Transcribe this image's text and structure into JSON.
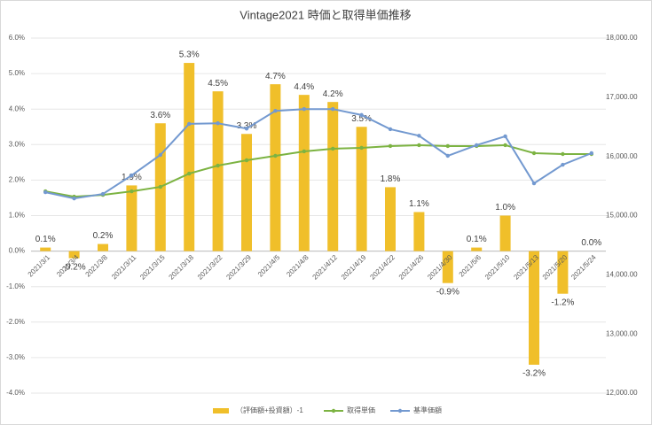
{
  "chart_data": {
    "type": "bar",
    "title": "Vintage2021 時価と取得単価推移",
    "categories": [
      "2021/3/1",
      "2021/3/4",
      "2021/3/8",
      "2021/3/11",
      "2021/3/15",
      "2021/3/18",
      "2021/3/22",
      "2021/3/29",
      "2021/4/5",
      "2021/4/8",
      "2021/4/12",
      "2021/4/19",
      "2021/4/22",
      "2021/4/26",
      "2021/4/30",
      "2021/5/6",
      "2021/5/10",
      "2021/5/13",
      "2021/5/20",
      "2021/5/24"
    ],
    "series": [
      {
        "name": "（評価額+投資額）-1",
        "type": "bar",
        "color": "#f0bf2a",
        "values": [
          0.1,
          -0.2,
          0.2,
          1.85,
          3.6,
          5.3,
          4.5,
          3.3,
          4.7,
          4.4,
          4.2,
          3.5,
          1.8,
          1.1,
          -0.9,
          0.1,
          1.0,
          -3.2,
          -1.2,
          0.0
        ],
        "value_labels": [
          "0.1%",
          "-0.2%",
          "0.2%",
          "1.9%",
          "3.6%",
          "5.3%",
          "4.5%",
          "3.3%",
          "4.7%",
          "4.4%",
          "4.2%",
          "3.5%",
          "1.8%",
          "1.1%",
          "-0.9%",
          "0.1%",
          "1.0%",
          "-3.2%",
          "-1.2%",
          "0.0%"
        ]
      },
      {
        "name": "取得単価",
        "type": "line",
        "axis": "y2",
        "color": "#7cb342",
        "values": [
          15410,
          15320,
          15350,
          15410,
          15485,
          15710,
          15845,
          15935,
          16010,
          16085,
          16130,
          16145,
          16175,
          16190,
          16175,
          16175,
          16190,
          16055,
          16040,
          16040
        ]
      },
      {
        "name": "基準価額",
        "type": "line",
        "axis": "y2",
        "color": "#7399d0",
        "values": [
          15395,
          15290,
          15365,
          15680,
          16025,
          16550,
          16560,
          16470,
          16770,
          16800,
          16800,
          16700,
          16460,
          16350,
          16010,
          16190,
          16340,
          15545,
          15860,
          16055
        ]
      }
    ],
    "ylim": [
      -4,
      6
    ],
    "yticks": [
      {
        "value": -4,
        "label": "-4.0%"
      },
      {
        "value": -3,
        "label": "-3.0%"
      },
      {
        "value": -2,
        "label": "-2.0%"
      },
      {
        "value": -1,
        "label": "-1.0%"
      },
      {
        "value": 0,
        "label": "0.0%"
      },
      {
        "value": 1,
        "label": "1.0%"
      },
      {
        "value": 2,
        "label": "2.0%"
      },
      {
        "value": 3,
        "label": "3.0%"
      },
      {
        "value": 4,
        "label": "4.0%"
      },
      {
        "value": 5,
        "label": "5.0%"
      },
      {
        "value": 6,
        "label": "6.0%"
      }
    ],
    "y2lim": [
      12000,
      18000
    ],
    "y2ticks": [
      {
        "value": 12000,
        "label": "12,000.00"
      },
      {
        "value": 13000,
        "label": "13,000.00"
      },
      {
        "value": 14000,
        "label": "14,000.00"
      },
      {
        "value": 15000,
        "label": "15,000.00"
      },
      {
        "value": 16000,
        "label": "16,000.00"
      },
      {
        "value": 17000,
        "label": "17,000.00"
      },
      {
        "value": 18000,
        "label": "18,000.00"
      }
    ],
    "legend": "bottom"
  }
}
